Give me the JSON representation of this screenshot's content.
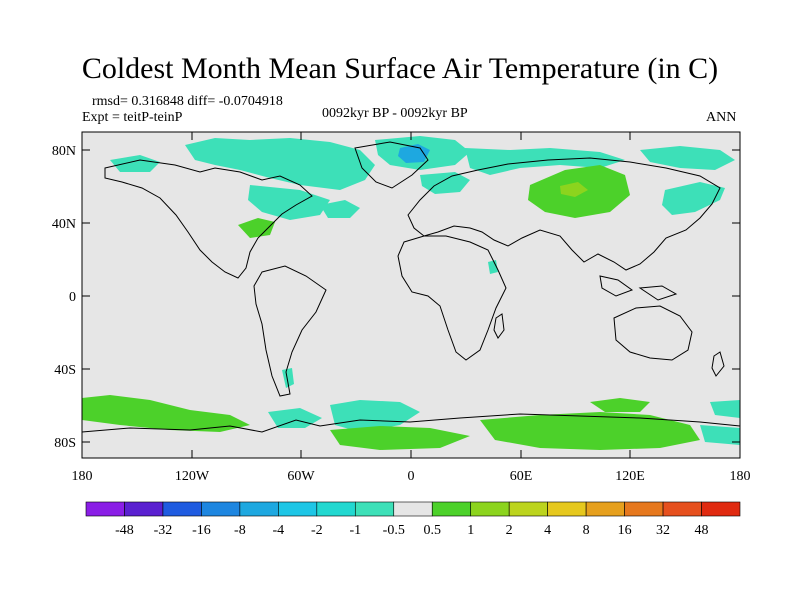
{
  "title": "Coldest Month Mean Surface Air Temperature (in C)",
  "stats": "rmsd= 0.316848 diff= -0.0704918",
  "experiment": "Expt = teitP-teinP",
  "period": "0092kyr BP - 0092kyr BP",
  "season": "ANN",
  "lat_labels": [
    "80N",
    "40N",
    "0",
    "40S",
    "80S"
  ],
  "lon_labels": [
    "180",
    "120W",
    "60W",
    "0",
    "60E",
    "120E",
    "180"
  ],
  "colorbar": {
    "labels": [
      "-48",
      "-32",
      "-16",
      "-8",
      "-4",
      "-2",
      "-1",
      "-0.5",
      "0.5",
      "1",
      "2",
      "4",
      "8",
      "16",
      "32",
      "48"
    ],
    "colors": [
      "#8a1ee6",
      "#5a20d0",
      "#1f5be0",
      "#1e86e0",
      "#1ea8e0",
      "#1ec6e6",
      "#22d8d0",
      "#3de0b8",
      "#e6e6e6",
      "#4cd12a",
      "#8cd41e",
      "#bcd41e",
      "#e6c81e",
      "#e6a01e",
      "#e6781e",
      "#e6501e",
      "#e02a10"
    ]
  },
  "colors": {
    "land_background": "#e6e6e6",
    "cool_anomaly": "#3de0b8",
    "cold_anomaly": "#1ea8e0",
    "warm_anomaly": "#4cd12a"
  }
}
